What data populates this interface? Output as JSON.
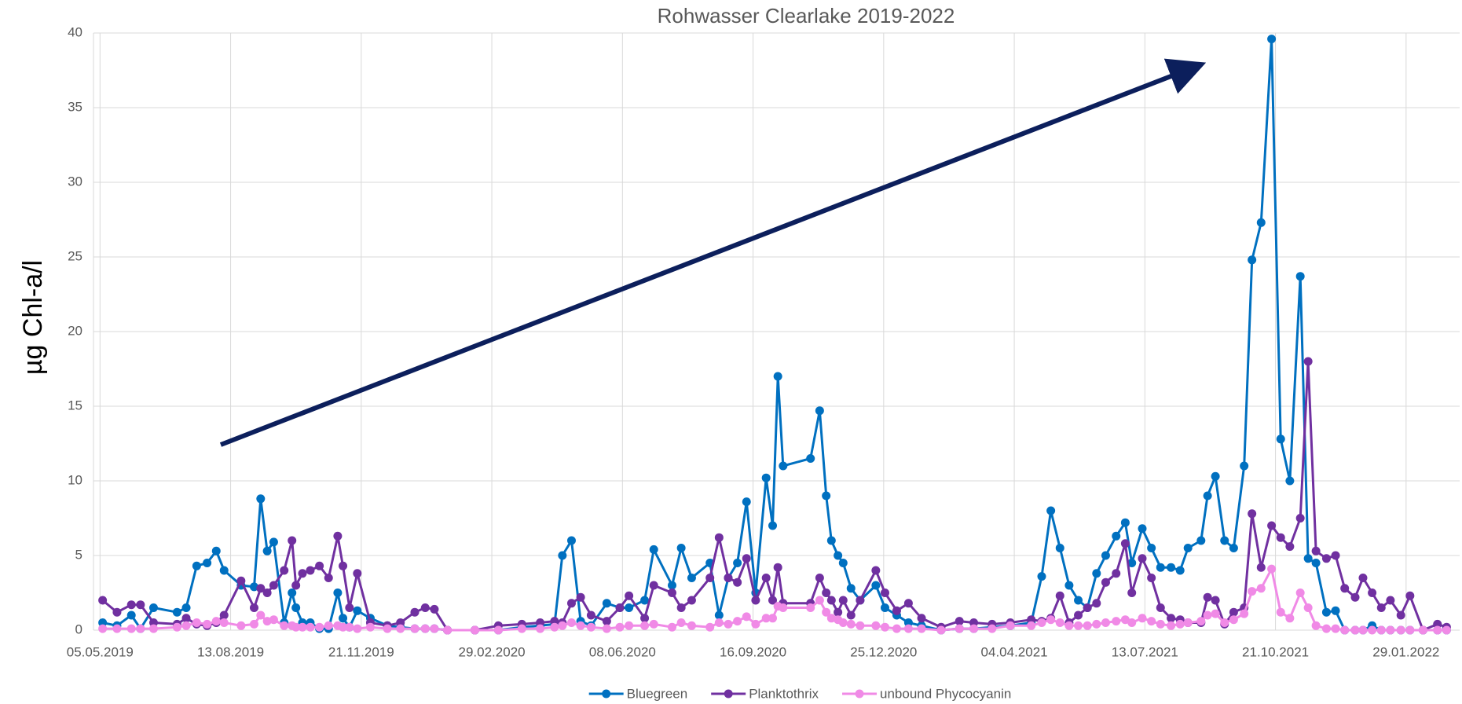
{
  "chart_data": {
    "type": "line",
    "title": "Rohwasser Clearlake 2019-2022",
    "y_label": "µg Chl-a/l",
    "x": [
      "2019-05-07",
      "2019-05-18",
      "2019-05-29",
      "2019-06-05",
      "2019-06-15",
      "2019-07-03",
      "2019-07-10",
      "2019-07-18",
      "2019-07-26",
      "2019-08-02",
      "2019-08-08",
      "2019-08-21",
      "2019-08-31",
      "2019-09-05",
      "2019-09-10",
      "2019-09-15",
      "2019-09-23",
      "2019-09-29",
      "2019-10-02",
      "2019-10-07",
      "2019-10-13",
      "2019-10-20",
      "2019-10-27",
      "2019-11-03",
      "2019-11-07",
      "2019-11-12",
      "2019-11-18",
      "2019-11-28",
      "2019-12-11",
      "2019-12-21",
      "2020-01-01",
      "2020-01-09",
      "2020-01-16",
      "2020-01-26",
      "2020-02-16",
      "2020-03-05",
      "2020-03-23",
      "2020-04-06",
      "2020-04-17",
      "2020-04-23",
      "2020-04-30",
      "2020-05-07",
      "2020-05-15",
      "2020-05-27",
      "2020-06-06",
      "2020-06-13",
      "2020-06-25",
      "2020-07-02",
      "2020-07-16",
      "2020-07-23",
      "2020-07-31",
      "2020-08-14",
      "2020-08-21",
      "2020-08-28",
      "2020-09-04",
      "2020-09-11",
      "2020-09-18",
      "2020-09-26",
      "2020-10-01",
      "2020-10-05",
      "2020-10-09",
      "2020-10-30",
      "2020-11-06",
      "2020-11-11",
      "2020-11-15",
      "2020-11-20",
      "2020-11-24",
      "2020-11-30",
      "2020-12-07",
      "2020-12-19",
      "2020-12-26",
      "2021-01-04",
      "2021-01-13",
      "2021-01-23",
      "2021-02-07",
      "2021-02-21",
      "2021-03-04",
      "2021-03-18",
      "2021-04-01",
      "2021-04-17",
      "2021-04-25",
      "2021-05-02",
      "2021-05-09",
      "2021-05-16",
      "2021-05-23",
      "2021-05-30",
      "2021-06-06",
      "2021-06-13",
      "2021-06-21",
      "2021-06-28",
      "2021-07-03",
      "2021-07-11",
      "2021-07-18",
      "2021-07-25",
      "2021-08-02",
      "2021-08-09",
      "2021-08-15",
      "2021-08-25",
      "2021-08-30",
      "2021-09-05",
      "2021-09-12",
      "2021-09-19",
      "2021-09-27",
      "2021-10-03",
      "2021-10-10",
      "2021-10-18",
      "2021-10-25",
      "2021-11-01",
      "2021-11-09",
      "2021-11-15",
      "2021-11-21",
      "2021-11-29",
      "2021-12-06",
      "2021-12-13",
      "2021-12-21",
      "2021-12-27",
      "2022-01-03",
      "2022-01-10",
      "2022-01-17",
      "2022-01-25",
      "2022-02-01",
      "2022-02-11",
      "2022-02-22",
      "2022-03-01"
    ],
    "series": [
      {
        "name": "Bluegreen",
        "color": "#0070c0",
        "values": [
          0.5,
          0.3,
          1.0,
          0.1,
          1.5,
          1.2,
          1.5,
          4.3,
          4.5,
          5.3,
          4.0,
          3.0,
          2.9,
          8.8,
          5.3,
          5.9,
          0.5,
          2.5,
          1.5,
          0.5,
          0.5,
          0.1,
          0.1,
          2.5,
          0.8,
          0.2,
          1.3,
          0.8,
          0.3,
          0.2,
          0.1,
          0.1,
          0.1,
          0,
          0,
          0,
          0.2,
          0.3,
          0.4,
          5.0,
          6.0,
          0.6,
          0.3,
          1.8,
          1.5,
          1.5,
          2.0,
          5.4,
          3.0,
          5.5,
          3.5,
          4.5,
          1.0,
          3.5,
          4.5,
          8.6,
          2.5,
          10.2,
          7.0,
          17.0,
          11.0,
          11.5,
          14.7,
          9.0,
          6.0,
          5.0,
          4.5,
          2.8,
          2.0,
          3.0,
          1.5,
          1.0,
          0.5,
          0.3,
          0,
          0.1,
          0.1,
          0.2,
          0.3,
          0.5,
          3.6,
          8.0,
          5.5,
          3.0,
          2.0,
          1.5,
          3.8,
          5.0,
          6.3,
          7.2,
          4.5,
          6.8,
          5.5,
          4.2,
          4.2,
          4.0,
          5.5,
          6.0,
          9.0,
          10.3,
          6.0,
          5.5,
          11.0,
          24.8,
          27.3,
          39.6,
          12.8,
          10.0,
          23.7,
          4.8,
          4.5,
          1.2,
          1.3,
          0,
          0,
          0,
          0.3,
          0,
          0,
          0,
          0,
          0,
          0,
          0
        ]
      },
      {
        "name": "Planktothrix",
        "color": "#7030a0",
        "values": [
          2.0,
          1.2,
          1.7,
          1.7,
          0.5,
          0.4,
          0.8,
          0.4,
          0.3,
          0.5,
          1.0,
          3.3,
          1.5,
          2.8,
          2.5,
          3.0,
          4.0,
          6.0,
          3.0,
          3.8,
          4.0,
          4.3,
          3.5,
          6.3,
          4.3,
          1.5,
          3.8,
          0.5,
          0.3,
          0.5,
          1.2,
          1.5,
          1.4,
          0,
          0,
          0.3,
          0.4,
          0.5,
          0.6,
          0.5,
          1.8,
          2.2,
          1.0,
          0.6,
          1.5,
          2.3,
          0.8,
          3.0,
          2.5,
          1.5,
          2.0,
          3.5,
          6.2,
          3.5,
          3.2,
          4.8,
          2.0,
          3.5,
          2.0,
          4.2,
          1.8,
          1.8,
          3.5,
          2.5,
          2.0,
          1.2,
          2.0,
          1.0,
          2.0,
          4.0,
          2.5,
          1.3,
          1.8,
          0.8,
          0.2,
          0.6,
          0.5,
          0.4,
          0.5,
          0.7,
          0.6,
          0.8,
          2.3,
          0.5,
          1.0,
          1.5,
          1.8,
          3.2,
          3.8,
          5.8,
          2.5,
          4.8,
          3.5,
          1.5,
          0.8,
          0.7,
          0.5,
          0.5,
          2.2,
          2.0,
          0.4,
          1.2,
          1.5,
          7.8,
          4.2,
          7.0,
          6.2,
          5.6,
          7.5,
          18.0,
          5.3,
          4.8,
          5.0,
          2.8,
          2.2,
          3.5,
          2.5,
          1.5,
          2.0,
          1.0,
          2.3,
          0,
          0.4,
          0.2
        ]
      },
      {
        "name": "unbound Phycocyanin",
        "color": "#f08ae6",
        "values": [
          0.1,
          0.1,
          0.1,
          0.1,
          0.1,
          0.2,
          0.3,
          0.5,
          0.4,
          0.6,
          0.5,
          0.3,
          0.4,
          1.0,
          0.6,
          0.7,
          0.3,
          0.3,
          0.2,
          0.2,
          0.2,
          0.2,
          0.3,
          0.3,
          0.2,
          0.2,
          0.1,
          0.2,
          0.1,
          0.1,
          0.1,
          0.1,
          0.1,
          0,
          0,
          0,
          0.1,
          0.1,
          0.2,
          0.3,
          0.5,
          0.3,
          0.2,
          0.1,
          0.2,
          0.3,
          0.3,
          0.4,
          0.2,
          0.5,
          0.3,
          0.2,
          0.5,
          0.4,
          0.6,
          0.9,
          0.4,
          0.8,
          0.8,
          1.6,
          1.5,
          1.5,
          2.0,
          1.2,
          0.8,
          0.7,
          0.5,
          0.4,
          0.3,
          0.3,
          0.2,
          0.1,
          0.1,
          0.1,
          0,
          0.1,
          0.1,
          0.1,
          0.3,
          0.3,
          0.5,
          0.7,
          0.5,
          0.3,
          0.3,
          0.3,
          0.4,
          0.5,
          0.6,
          0.7,
          0.5,
          0.8,
          0.6,
          0.4,
          0.3,
          0.4,
          0.5,
          0.6,
          1.0,
          1.1,
          0.5,
          0.7,
          1.1,
          2.6,
          2.8,
          4.1,
          1.2,
          0.8,
          2.5,
          1.5,
          0.3,
          0.1,
          0.1,
          0,
          0,
          0,
          0,
          0,
          0,
          0,
          0,
          0,
          0,
          0
        ]
      }
    ],
    "xlim": [
      "2019-04-30",
      "2022-03-11"
    ],
    "xticks": [
      {
        "value": "2019-05-05",
        "label": "05.05.2019"
      },
      {
        "value": "2019-08-13",
        "label": "13.08.2019"
      },
      {
        "value": "2019-11-21",
        "label": "21.11.2019"
      },
      {
        "value": "2020-02-29",
        "label": "29.02.2020"
      },
      {
        "value": "2020-06-08",
        "label": "08.06.2020"
      },
      {
        "value": "2020-09-16",
        "label": "16.09.2020"
      },
      {
        "value": "2020-12-25",
        "label": "25.12.2020"
      },
      {
        "value": "2021-04-04",
        "label": "04.04.2021"
      },
      {
        "value": "2021-07-13",
        "label": "13.07.2021"
      },
      {
        "value": "2021-10-21",
        "label": "21.10.2021"
      },
      {
        "value": "2022-01-29",
        "label": "29.01.2022"
      }
    ],
    "ylim": [
      0,
      40
    ],
    "yticks": [
      0,
      5,
      10,
      15,
      20,
      25,
      30,
      35,
      40
    ],
    "grid": true,
    "legend": "bottom"
  }
}
